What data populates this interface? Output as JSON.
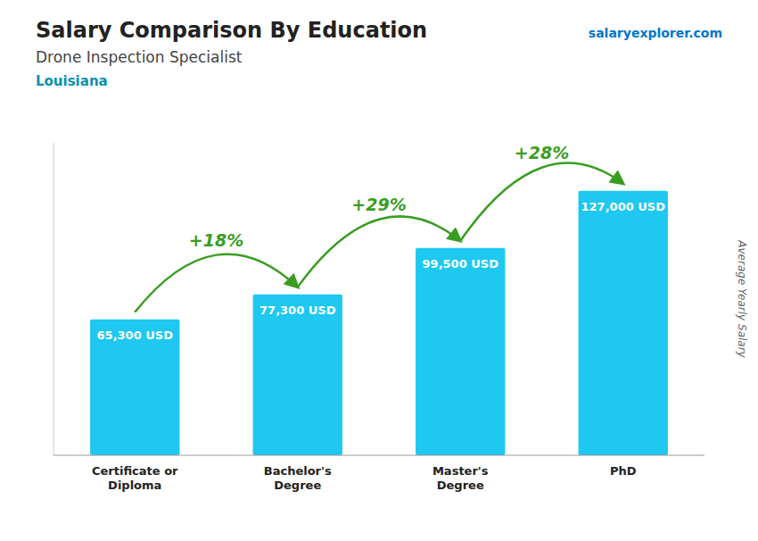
{
  "chart_data": {
    "type": "bar",
    "title": "Salary Comparison By Education",
    "subtitle": "Drone Inspection Specialist",
    "location": "Louisiana",
    "source": "salaryexplorer.com",
    "ylabel": "Average Yearly Salary",
    "categories": [
      "Certificate or\nDiploma",
      "Bachelor's\nDegree",
      "Master's\nDegree",
      "PhD"
    ],
    "values": [
      65300,
      77300,
      99500,
      127000
    ],
    "value_labels": [
      "65,300 USD",
      "77,300 USD",
      "99,500 USD",
      "127,000 USD"
    ],
    "data_labels": true,
    "annotations": [
      "+18%",
      "+29%",
      "+28%"
    ],
    "color": "#1EC8F0",
    "ylim": [
      0,
      150000
    ],
    "tick_labels": "x",
    "grid": false
  }
}
